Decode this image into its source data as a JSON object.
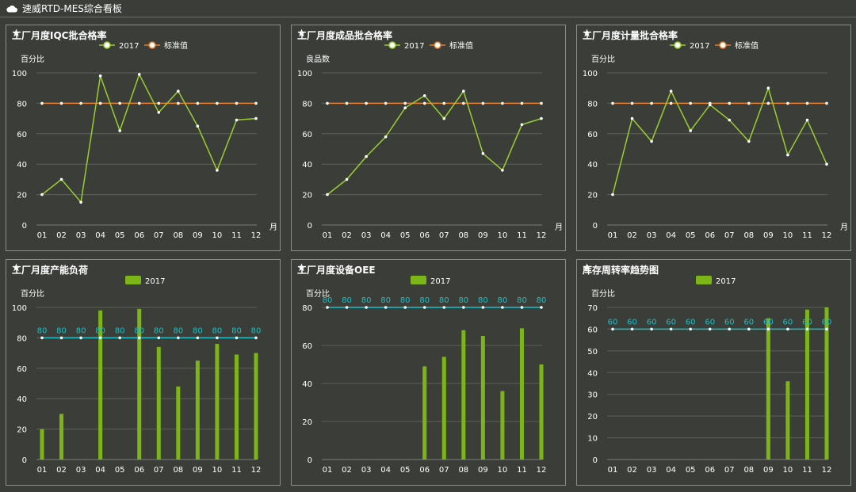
{
  "app": {
    "title": "速威RTD-MES综合看板",
    "icon": "cloud-icon"
  },
  "colors": {
    "background": "#3b3e38",
    "line": "#9acd32",
    "standard": "#e87d2e",
    "bar": "#7cb518",
    "target": "#17c1c9",
    "grid": "#5c6058"
  },
  "chart_data": [
    {
      "type": "line",
      "title": "工厂月度IQC批合格率",
      "ylabel": "百分比",
      "xlabel": "月",
      "categories": [
        "01",
        "02",
        "03",
        "04",
        "05",
        "06",
        "07",
        "08",
        "09",
        "10",
        "11",
        "12"
      ],
      "ylim": [
        0,
        100
      ],
      "yticks": [
        0,
        20,
        40,
        60,
        80,
        100
      ],
      "series": [
        {
          "name": "2017",
          "values": [
            20,
            30,
            15,
            98,
            62,
            99,
            74,
            88,
            65,
            36,
            69,
            70
          ]
        },
        {
          "name": "标准值",
          "values": [
            80,
            80,
            80,
            80,
            80,
            80,
            80,
            80,
            80,
            80,
            80,
            80
          ]
        }
      ],
      "legend": "top-center",
      "grid": true
    },
    {
      "type": "line",
      "title": "工厂月度成品批合格率",
      "ylabel": "良品数",
      "xlabel": "月",
      "categories": [
        "01",
        "02",
        "03",
        "04",
        "05",
        "06",
        "07",
        "08",
        "09",
        "10",
        "11",
        "12"
      ],
      "ylim": [
        0,
        100
      ],
      "yticks": [
        0,
        20,
        40,
        60,
        80,
        100
      ],
      "series": [
        {
          "name": "2017",
          "values": [
            20,
            30,
            45,
            58,
            77,
            85,
            70,
            88,
            47,
            36,
            66,
            70
          ]
        },
        {
          "name": "标准值",
          "values": [
            80,
            80,
            80,
            80,
            80,
            80,
            80,
            80,
            80,
            80,
            80,
            80
          ]
        }
      ],
      "legend": "top-center",
      "grid": true
    },
    {
      "type": "line",
      "title": "工厂月度计量批合格率",
      "ylabel": "百分比",
      "xlabel": "月",
      "categories": [
        "01",
        "02",
        "03",
        "04",
        "05",
        "06",
        "07",
        "08",
        "09",
        "10",
        "11",
        "12"
      ],
      "ylim": [
        0,
        100
      ],
      "yticks": [
        0,
        20,
        40,
        60,
        80,
        100
      ],
      "series": [
        {
          "name": "2017",
          "values": [
            20,
            70,
            55,
            88,
            62,
            79,
            69,
            55,
            90,
            46,
            69,
            40
          ]
        },
        {
          "name": "标准值",
          "values": [
            80,
            80,
            80,
            80,
            80,
            80,
            80,
            80,
            80,
            80,
            80,
            80
          ]
        }
      ],
      "legend": "top-center",
      "grid": true
    },
    {
      "type": "bar",
      "title": "工厂月度产能负荷",
      "ylabel": "百分比",
      "xlabel": "",
      "categories": [
        "01",
        "02",
        "03",
        "04",
        "05",
        "06",
        "07",
        "08",
        "09",
        "10",
        "11",
        "12"
      ],
      "ylim": [
        0,
        100
      ],
      "yticks": [
        0,
        20,
        40,
        60,
        80,
        100
      ],
      "series": [
        {
          "name": "2017",
          "values": [
            20,
            30,
            0,
            98,
            0,
            99,
            74,
            48,
            65,
            76,
            69,
            70
          ]
        }
      ],
      "target": {
        "values": [
          80,
          80,
          80,
          80,
          80,
          80,
          80,
          80,
          80,
          80,
          80,
          80
        ],
        "labels": [
          "80",
          "80",
          "80",
          "80",
          "80",
          "80",
          "80",
          "80",
          "80",
          "80",
          "80",
          "80"
        ]
      },
      "legend": "top-center",
      "grid": true
    },
    {
      "type": "bar",
      "title": "工厂月度设备OEE",
      "ylabel": "百分比",
      "xlabel": "",
      "categories": [
        "01",
        "02",
        "03",
        "04",
        "05",
        "06",
        "07",
        "08",
        "09",
        "10",
        "11",
        "12"
      ],
      "ylim": [
        0,
        80
      ],
      "yticks": [
        0,
        20,
        40,
        60,
        80
      ],
      "series": [
        {
          "name": "2017",
          "values": [
            0,
            0,
            0,
            0,
            0,
            49,
            54,
            68,
            65,
            36,
            69,
            50
          ]
        }
      ],
      "target": {
        "values": [
          80,
          80,
          80,
          80,
          80,
          80,
          80,
          80,
          80,
          80,
          80,
          80
        ],
        "labels": [
          "80",
          "80",
          "80",
          "80",
          "80",
          "80",
          "80",
          "80",
          "80",
          "80",
          "80",
          "80"
        ]
      },
      "legend": "top-center",
      "grid": true
    },
    {
      "type": "bar",
      "title": "库存周转率趋势图",
      "ylabel": "百分比",
      "xlabel": "",
      "categories": [
        "01",
        "02",
        "03",
        "04",
        "05",
        "06",
        "07",
        "08",
        "09",
        "10",
        "11",
        "12"
      ],
      "ylim": [
        0,
        70
      ],
      "yticks": [
        0,
        10,
        20,
        30,
        40,
        50,
        60,
        70
      ],
      "series": [
        {
          "name": "2017",
          "values": [
            0,
            0,
            0,
            0,
            0,
            0,
            0,
            0,
            65,
            36,
            69,
            70
          ]
        }
      ],
      "target": {
        "values": [
          60,
          60,
          60,
          60,
          60,
          60,
          60,
          60,
          60,
          60,
          60,
          60
        ],
        "labels": [
          "60",
          "60",
          "60",
          "60",
          "60",
          "60",
          "60",
          "60",
          "60",
          "60",
          "60",
          "60"
        ]
      },
      "legend": "top-center",
      "grid": true
    }
  ]
}
